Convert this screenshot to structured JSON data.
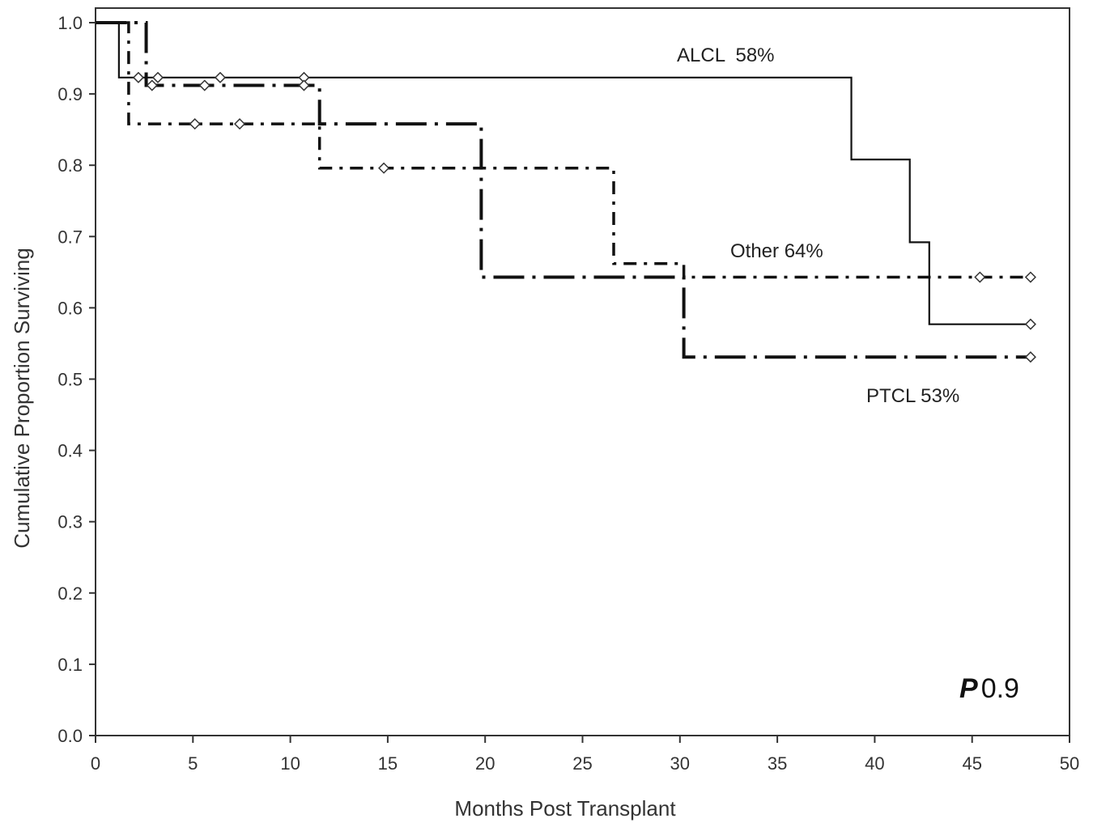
{
  "chart_data": {
    "type": "line",
    "subtype": "kaplan-meier",
    "title": "",
    "xlabel": "Months Post Transplant",
    "ylabel": "Cumulative Proportion Surviving",
    "xlim": [
      0,
      50
    ],
    "ylim": [
      0,
      1.0
    ],
    "xticks": [
      0,
      5,
      10,
      15,
      20,
      25,
      30,
      35,
      40,
      45,
      50
    ],
    "yticks": [
      0.0,
      0.1,
      0.2,
      0.3,
      0.4,
      0.5,
      0.6,
      0.7,
      0.8,
      0.9,
      1.0
    ],
    "ytick_labels": [
      "0.0",
      "0.1",
      "0.2",
      "0.3",
      "0.4",
      "0.5",
      "0.6",
      "0.7",
      "0.8",
      "0.9",
      "1.0"
    ],
    "grid": false,
    "legend": "none",
    "series": [
      {
        "label": "ALCL  58%",
        "line_style": "solid",
        "steps": [
          [
            0,
            1.0
          ],
          [
            1.2,
            0.923
          ],
          [
            38.8,
            0.808
          ],
          [
            41.8,
            0.692
          ],
          [
            42.8,
            0.577
          ],
          [
            48,
            0.577
          ]
        ],
        "censored": [
          [
            2.2,
            0.923
          ],
          [
            3.2,
            0.923
          ],
          [
            6.4,
            0.923
          ],
          [
            10.7,
            0.923
          ],
          [
            48,
            0.577
          ]
        ]
      },
      {
        "label": "PTCL 53%",
        "line_style": "long-dash-dot",
        "steps": [
          [
            0,
            1.0
          ],
          [
            2.6,
            0.912
          ],
          [
            11.5,
            0.858
          ],
          [
            19.8,
            0.643
          ],
          [
            30.2,
            0.531
          ],
          [
            48,
            0.531
          ]
        ],
        "censored": [
          [
            2.9,
            0.912
          ],
          [
            5.6,
            0.912
          ],
          [
            10.7,
            0.912
          ],
          [
            48,
            0.531
          ]
        ]
      },
      {
        "label": "Other 64%",
        "line_style": "dash-dot",
        "steps": [
          [
            0,
            1.0
          ],
          [
            1.7,
            0.858
          ],
          [
            11.5,
            0.796
          ],
          [
            26.6,
            0.662
          ],
          [
            30.2,
            0.643
          ],
          [
            48,
            0.643
          ]
        ],
        "censored": [
          [
            5.1,
            0.858
          ],
          [
            7.4,
            0.858
          ],
          [
            14.8,
            0.796
          ],
          [
            45.4,
            0.643
          ],
          [
            48,
            0.643
          ]
        ]
      }
    ],
    "annotations": {
      "pvalue_symbol": "P",
      "pvalue": "0.9"
    }
  }
}
